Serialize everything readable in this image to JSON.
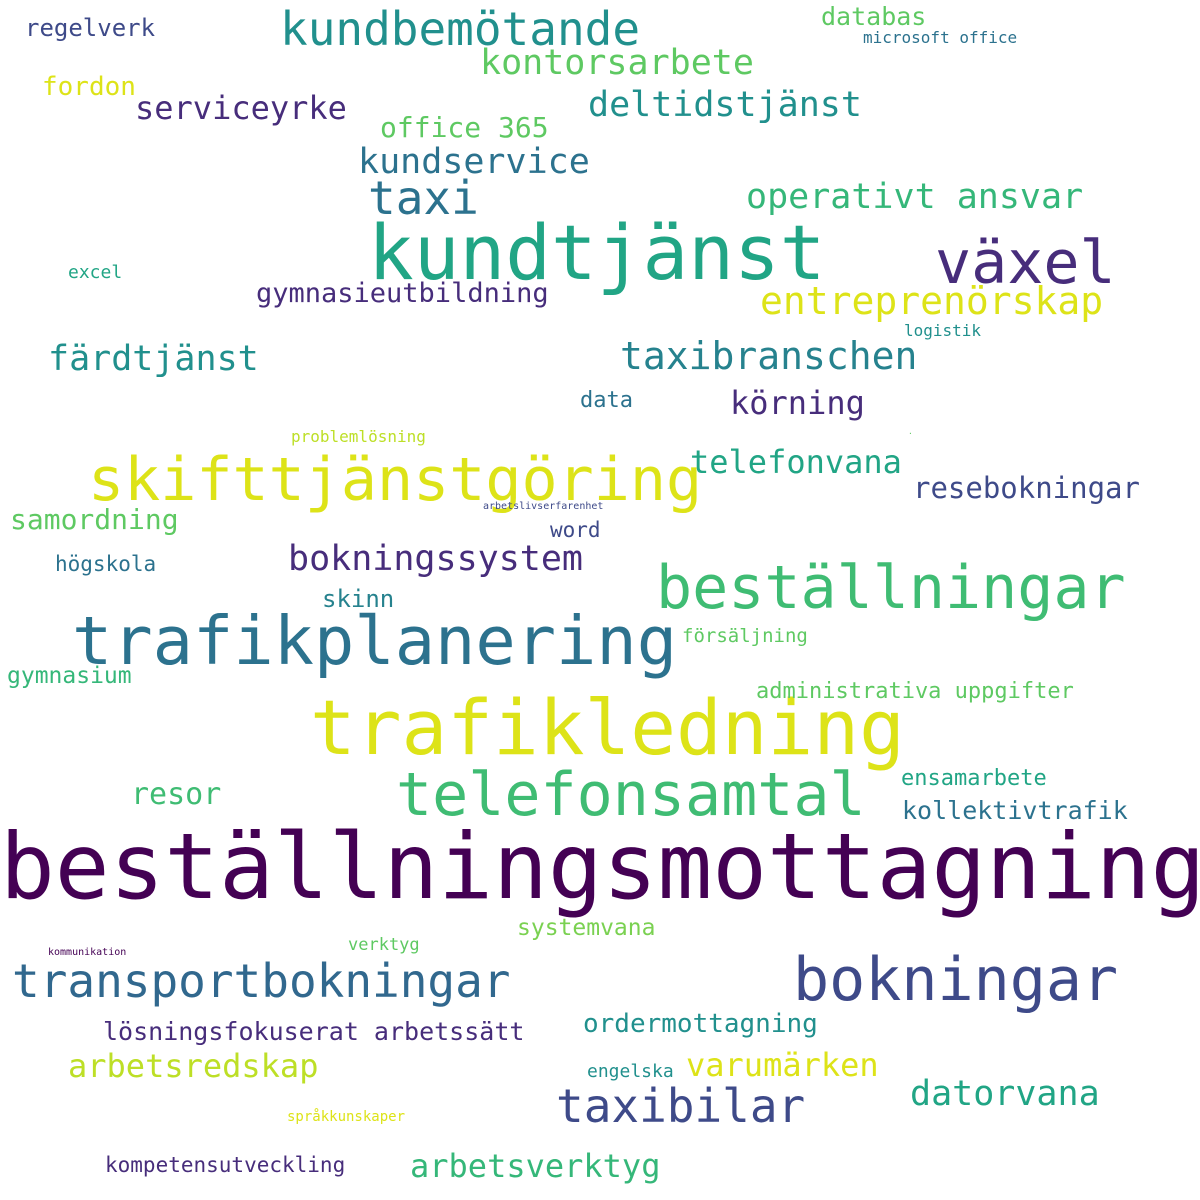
{
  "palette": {
    "purple": "#440154",
    "indigo": "#472d7b",
    "slate": "#3b528b",
    "steel": "#2c728e",
    "teal": "#21908d",
    "green": "#27ad81",
    "mint": "#5ec962",
    "lime": "#aadc32",
    "yellow": "#dde318"
  },
  "words": [
    {
      "id": "bestallningsmottagning",
      "text": "beställningsmottagning",
      "color": "#440154"
    },
    {
      "id": "trafikledning",
      "text": "trafikledning",
      "color": "#dde318"
    },
    {
      "id": "kundtjanst",
      "text": "kundtjänst",
      "color": "#21a585"
    },
    {
      "id": "trafikplanering",
      "text": "trafikplanering",
      "color": "#2c728e"
    },
    {
      "id": "bestallningar",
      "text": "beställningar",
      "color": "#3fbc73"
    },
    {
      "id": "skifttjanstgoring",
      "text": "skifttjänstgöring",
      "color": "#dde318"
    },
    {
      "id": "telefonsamtal",
      "text": "telefonsamtal",
      "color": "#3fbc73"
    },
    {
      "id": "bokningar",
      "text": "bokningar",
      "color": "#3e4a89"
    },
    {
      "id": "vaxel",
      "text": "växel",
      "color": "#472d7b"
    },
    {
      "id": "transportbokningar",
      "text": "transportbokningar",
      "color": "#31688e"
    },
    {
      "id": "taxibilar",
      "text": "taxibilar",
      "color": "#3e4a89"
    },
    {
      "id": "kundbemotande",
      "text": "kundbemötande",
      "color": "#21908d"
    },
    {
      "id": "taxi",
      "text": "taxi",
      "color": "#2c728e"
    },
    {
      "id": "taxibranschen",
      "text": "taxibranschen",
      "color": "#26828e"
    },
    {
      "id": "entreprenorskap",
      "text": "entreprenörskap",
      "color": "#dde318"
    },
    {
      "id": "kontorsarbete",
      "text": "kontorsarbete",
      "color": "#5ec962"
    },
    {
      "id": "deltidstjanst",
      "text": "deltidstjänst",
      "color": "#21908d"
    },
    {
      "id": "kundservice",
      "text": "kundservice",
      "color": "#2c728e"
    },
    {
      "id": "operativt-ansvar",
      "text": "operativt ansvar",
      "color": "#35b779"
    },
    {
      "id": "fardtjanst",
      "text": "färdtjänst",
      "color": "#21908d"
    },
    {
      "id": "bokningssystem",
      "text": "bokningssystem",
      "color": "#472d7b"
    },
    {
      "id": "datorvana",
      "text": "datorvana",
      "color": "#21a585"
    },
    {
      "id": "arbetsverktyg",
      "text": "arbetsverktyg",
      "color": "#35b779"
    },
    {
      "id": "serviceyrke",
      "text": "serviceyrke",
      "color": "#472d7b"
    },
    {
      "id": "telefonvana",
      "text": "telefonvana",
      "color": "#21a585"
    },
    {
      "id": "korning",
      "text": "körning",
      "color": "#472d7b"
    },
    {
      "id": "resebokningar",
      "text": "resebokningar",
      "color": "#3e4a89"
    },
    {
      "id": "varumarken",
      "text": "varumärken",
      "color": "#dde318"
    },
    {
      "id": "arbetsredskap",
      "text": "arbetsredskap",
      "color": "#bddf26"
    },
    {
      "id": "resor",
      "text": "resor",
      "color": "#3fbc73"
    },
    {
      "id": "gymnasieutbildning",
      "text": "gymnasieutbildning",
      "color": "#472d7b"
    },
    {
      "id": "samordning",
      "text": "samordning",
      "color": "#5ec962"
    },
    {
      "id": "office-365",
      "text": "office 365",
      "color": "#5ec962"
    },
    {
      "id": "databas",
      "text": "databas",
      "color": "#5ec962"
    },
    {
      "id": "regelverk",
      "text": "regelverk",
      "color": "#3e4a89"
    },
    {
      "id": "fordon",
      "text": "fordon",
      "color": "#dde318"
    },
    {
      "id": "ordermottagning",
      "text": "ordermottagning",
      "color": "#21908d"
    },
    {
      "id": "losningsfokuserat-arbetssatt",
      "text": "lösningsfokuserat arbetssätt",
      "color": "#472d7b"
    },
    {
      "id": "administrativa-uppgifter",
      "text": "administrativa uppgifter",
      "color": "#5ec962"
    },
    {
      "id": "ensamarbete",
      "text": "ensamarbete",
      "color": "#21a585"
    },
    {
      "id": "kollektivtrafik",
      "text": "kollektivtrafik",
      "color": "#2c728e"
    },
    {
      "id": "systemvana",
      "text": "systemvana",
      "color": "#7ad151"
    },
    {
      "id": "kompetensutveckling",
      "text": "kompetensutveckling",
      "color": "#472d7b"
    },
    {
      "id": "skinn",
      "text": "skinn",
      "color": "#26828e"
    },
    {
      "id": "gymnasium",
      "text": "gymnasium",
      "color": "#35b779"
    },
    {
      "id": "hogskola",
      "text": "högskola",
      "color": "#2c728e"
    },
    {
      "id": "data",
      "text": "data",
      "color": "#2c728e"
    },
    {
      "id": "word",
      "text": "word",
      "color": "#3e4a89"
    },
    {
      "id": "forsaljning",
      "text": "försäljning",
      "color": "#5ec962"
    },
    {
      "id": "excel",
      "text": "excel",
      "color": "#21a585"
    },
    {
      "id": "logistik",
      "text": "logistik",
      "color": "#21908d"
    },
    {
      "id": "microsoft-office",
      "text": "microsoft office",
      "color": "#2c728e"
    },
    {
      "id": "engelska",
      "text": "engelska",
      "color": "#21908d"
    },
    {
      "id": "verktyg",
      "text": "verktyg",
      "color": "#5ec962"
    },
    {
      "id": "problemlosning",
      "text": "problemlösning",
      "color": "#bddf26"
    },
    {
      "id": "sprakkunskaper",
      "text": "språkkunskaper",
      "color": "#dde318"
    },
    {
      "id": "arbetslivserfarenhet",
      "text": "arbetslivserfarenhet",
      "color": "#3e4a89"
    },
    {
      "id": "kommunikation",
      "text": "kommunikation",
      "color": "#440154"
    },
    {
      "id": "tiny-word",
      "text": "·",
      "color": "#5ec962"
    }
  ]
}
